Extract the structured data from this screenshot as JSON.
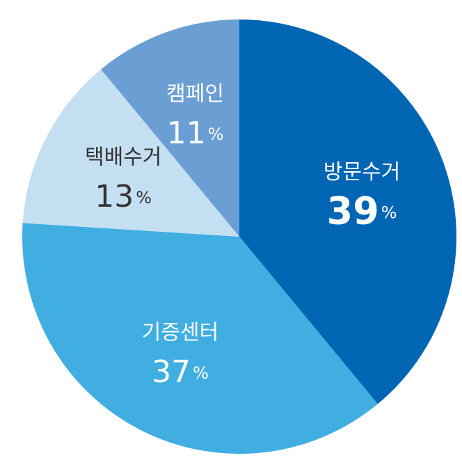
{
  "chart_data": {
    "type": "pie",
    "categories": [
      "방문수거",
      "기증센터",
      "택배수거",
      "캠페인"
    ],
    "values": [
      39,
      37,
      13,
      11
    ],
    "unit": "%",
    "colors": [
      "#0066b3",
      "#41aee2",
      "#c5dff2",
      "#6b9fd4"
    ]
  }
}
